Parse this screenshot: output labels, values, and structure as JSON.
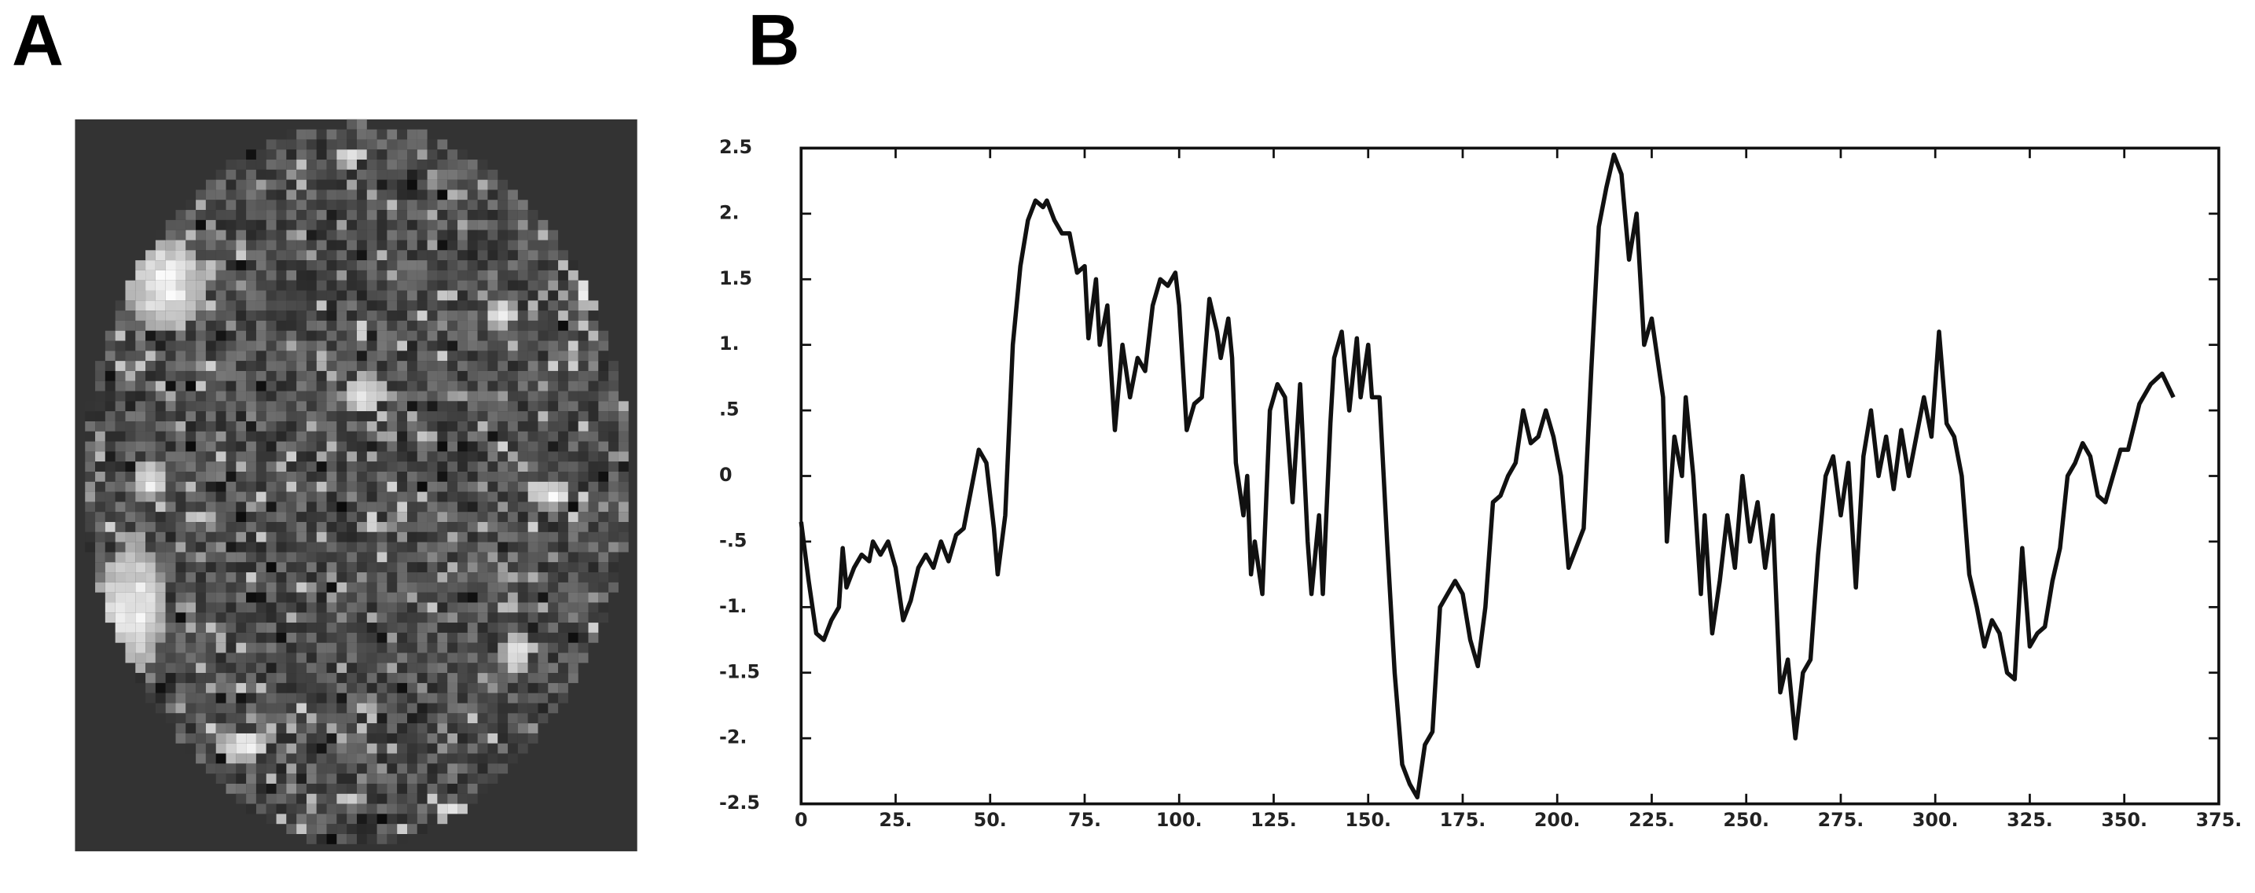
{
  "panel_labels": [
    "A",
    "B"
  ],
  "chart_data": {
    "type": "line",
    "x": [
      0,
      2,
      4,
      6,
      8,
      10,
      11,
      12,
      14,
      16,
      18,
      19,
      21,
      23,
      25,
      27,
      29,
      31,
      33,
      35,
      37,
      39,
      41,
      43,
      45,
      47,
      49,
      51,
      52,
      54,
      56,
      58,
      60,
      62,
      64,
      65,
      67,
      69,
      71,
      73,
      75,
      76,
      78,
      79,
      81,
      82,
      83,
      85,
      87,
      89,
      91,
      93,
      95,
      97,
      99,
      100,
      102,
      104,
      106,
      108,
      110,
      111,
      113,
      114,
      115,
      117,
      118,
      119,
      120,
      122,
      124,
      126,
      128,
      130,
      132,
      134,
      135,
      137,
      138,
      140,
      141,
      143,
      145,
      147,
      148,
      150,
      151,
      153,
      155,
      157,
      159,
      161,
      163,
      165,
      167,
      169,
      171,
      173,
      175,
      177,
      179,
      181,
      183,
      185,
      187,
      189,
      191,
      193,
      195,
      197,
      199,
      201,
      203,
      205,
      207,
      209,
      211,
      213,
      215,
      217,
      219,
      221,
      223,
      225,
      226,
      228,
      229,
      231,
      233,
      234,
      236,
      238,
      239,
      241,
      243,
      245,
      247,
      249,
      251,
      253,
      255,
      257,
      259,
      261,
      263,
      265,
      267,
      269,
      271,
      273,
      275,
      277,
      279,
      281,
      283,
      285,
      287,
      289,
      291,
      293,
      295,
      297,
      299,
      301,
      303,
      305,
      307,
      309,
      311,
      313,
      315,
      317,
      319,
      321,
      323,
      325,
      327,
      329,
      331,
      333,
      335,
      337,
      339,
      341,
      343,
      345,
      347,
      349,
      351,
      354,
      357,
      360,
      363
    ],
    "series": [
      {
        "color": "#111111",
        "values": [
          -0.35,
          -0.8,
          -1.2,
          -1.25,
          -1.1,
          -1.0,
          -0.55,
          -0.85,
          -0.7,
          -0.6,
          -0.65,
          -0.5,
          -0.6,
          -0.5,
          -0.7,
          -1.1,
          -0.95,
          -0.7,
          -0.6,
          -0.7,
          -0.5,
          -0.65,
          -0.45,
          -0.4,
          -0.1,
          0.2,
          0.1,
          -0.4,
          -0.75,
          -0.3,
          1.0,
          1.6,
          1.95,
          2.1,
          2.05,
          2.1,
          1.95,
          1.85,
          1.85,
          1.55,
          1.6,
          1.05,
          1.5,
          1.0,
          1.3,
          0.8,
          0.35,
          1.0,
          0.6,
          0.9,
          0.8,
          1.3,
          1.5,
          1.45,
          1.55,
          1.3,
          0.35,
          0.55,
          0.6,
          1.35,
          1.1,
          0.9,
          1.2,
          0.9,
          0.1,
          -0.3,
          0.0,
          -0.75,
          -0.5,
          -0.9,
          0.5,
          0.7,
          0.6,
          -0.2,
          0.7,
          -0.5,
          -0.9,
          -0.3,
          -0.9,
          0.4,
          0.9,
          1.1,
          0.5,
          1.05,
          0.6,
          1.0,
          0.6,
          0.6,
          -0.5,
          -1.5,
          -2.2,
          -2.35,
          -2.45,
          -2.05,
          -1.95,
          -1.0,
          -0.9,
          -0.8,
          -0.9,
          -1.25,
          -1.45,
          -1.0,
          -0.2,
          -0.15,
          0.0,
          0.1,
          0.5,
          0.25,
          0.3,
          0.5,
          0.3,
          0.0,
          -0.7,
          -0.55,
          -0.4,
          0.8,
          1.9,
          2.2,
          2.45,
          2.3,
          1.65,
          2.0,
          1.0,
          1.2,
          1.0,
          0.6,
          -0.5,
          0.3,
          0.0,
          0.6,
          0.0,
          -0.9,
          -0.3,
          -1.2,
          -0.8,
          -0.3,
          -0.7,
          0.0,
          -0.5,
          -0.2,
          -0.7,
          -0.3,
          -1.65,
          -1.4,
          -2.0,
          -1.5,
          -1.4,
          -0.6,
          0.0,
          0.15,
          -0.3,
          0.1,
          -0.85,
          0.15,
          0.5,
          0.0,
          0.3,
          -0.1,
          0.35,
          0.0,
          0.3,
          0.6,
          0.3,
          1.1,
          0.4,
          0.3,
          0.0,
          -0.75,
          -1.0,
          -1.3,
          -1.1,
          -1.2,
          -1.5,
          -1.55,
          -0.55,
          -1.3,
          -1.2,
          -1.15,
          -0.8,
          -0.55,
          0.0,
          0.1,
          0.25,
          0.15,
          -0.15,
          -0.2,
          0.0,
          0.2,
          0.2,
          0.55,
          0.7,
          0.78,
          0.6
        ]
      }
    ],
    "xlim": [
      0,
      375
    ],
    "xticks": [
      0,
      {
        "value": 25,
        "label": "25."
      },
      {
        "value": 50,
        "label": "50."
      },
      {
        "value": 75,
        "label": "75."
      },
      {
        "value": 100,
        "label": "100."
      },
      {
        "value": 125,
        "label": "125."
      },
      {
        "value": 150,
        "label": "150."
      },
      {
        "value": 175,
        "label": "175."
      },
      {
        "value": 200,
        "label": "200."
      },
      {
        "value": 225,
        "label": "225."
      },
      {
        "value": 250,
        "label": "250."
      },
      {
        "value": 275,
        "label": "275."
      },
      {
        "value": 300,
        "label": "300."
      },
      {
        "value": 325,
        "label": "325."
      },
      {
        "value": 350,
        "label": "350."
      },
      {
        "value": 375,
        "label": "375."
      }
    ],
    "ylim": [
      -2.5,
      2.5
    ],
    "yticks": [
      -2.5,
      {
        "value": -2,
        "label": "-2."
      },
      -1.5,
      {
        "value": -1,
        "label": "-1."
      },
      {
        "value": -0.5,
        "label": "-.5"
      },
      0,
      {
        "value": 0.5,
        "label": ".5"
      },
      {
        "value": 1,
        "label": "1."
      },
      1.5,
      {
        "value": 2,
        "label": "2."
      },
      2.5
    ],
    "grid": false
  }
}
